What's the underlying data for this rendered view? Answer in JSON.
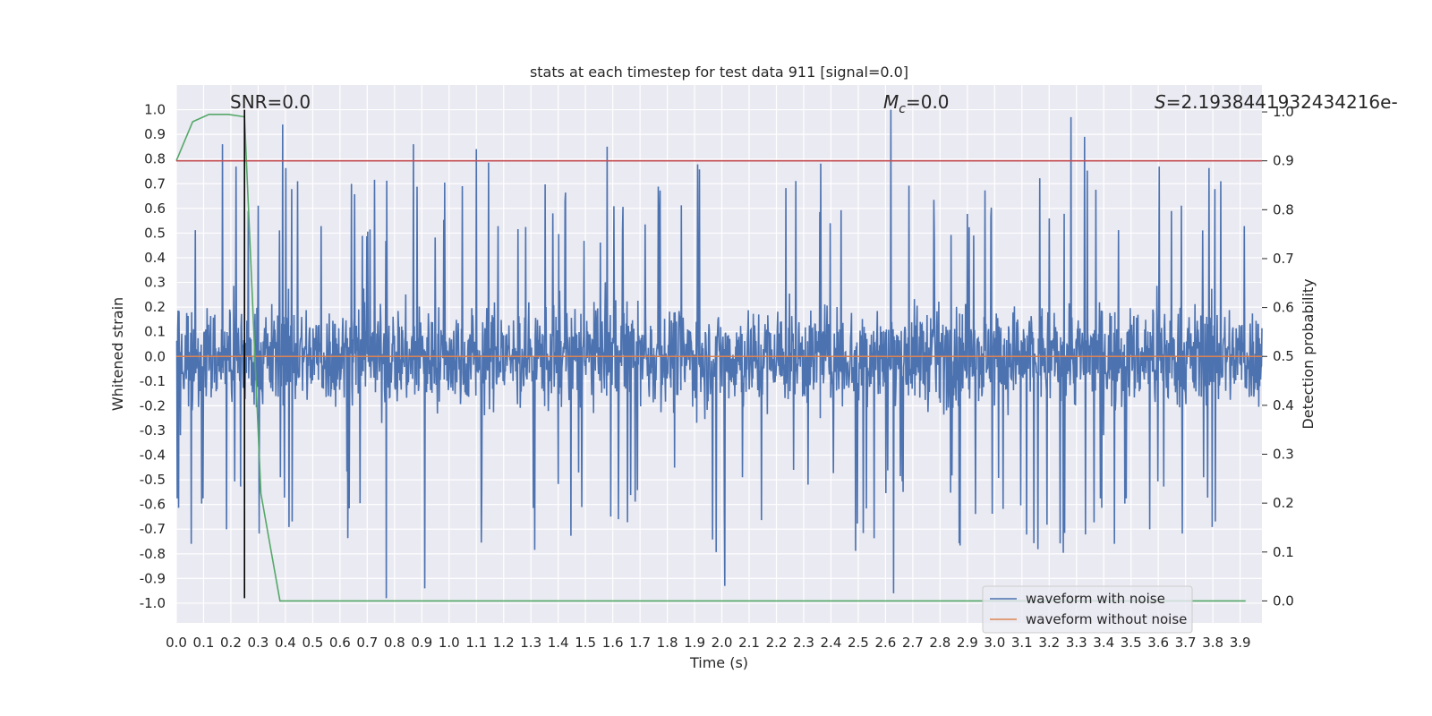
{
  "chart_data": {
    "type": "line",
    "title": "stats at each timestep for test data 911 [signal=0.0]",
    "xlabel": "Time (s)",
    "ylabel": "Whitened strain",
    "y2label": "Detection probability",
    "xlim": [
      0.0,
      3.98
    ],
    "ylim": [
      -1.08,
      1.1
    ],
    "y2lim": [
      -0.045,
      1.055
    ],
    "x_ticks": [
      "0.0",
      "0.1",
      "0.2",
      "0.3",
      "0.4",
      "0.5",
      "0.6",
      "0.7",
      "0.8",
      "0.9",
      "1.0",
      "1.1",
      "1.2",
      "1.3",
      "1.4",
      "1.5",
      "1.6",
      "1.7",
      "1.8",
      "1.9",
      "2.0",
      "2.1",
      "2.2",
      "2.3",
      "2.4",
      "2.5",
      "2.6",
      "2.7",
      "2.8",
      "2.9",
      "3.0",
      "3.1",
      "3.2",
      "3.3",
      "3.4",
      "3.5",
      "3.6",
      "3.7",
      "3.8",
      "3.9"
    ],
    "y_ticks": [
      "1.0",
      "0.9",
      "0.8",
      "0.7",
      "0.6",
      "0.5",
      "0.4",
      "0.3",
      "0.2",
      "0.1",
      "0.0",
      "-0.1",
      "-0.2",
      "-0.3",
      "-0.4",
      "-0.5",
      "-0.6",
      "-0.7",
      "-0.8",
      "-0.9",
      "-1.0"
    ],
    "y2_ticks": [
      "1.0",
      "0.9",
      "0.8",
      "0.7",
      "0.6",
      "0.5",
      "0.4",
      "0.3",
      "0.2",
      "0.1",
      "0.0"
    ],
    "grid": true,
    "annotations": {
      "snr": "SNR=0.0",
      "mc_symbol": "M",
      "mc_sub": "c",
      "mc_value": "=0.0",
      "s_symbol": "S",
      "s_value": "=2.1938441932434216e-"
    },
    "legend": {
      "position": "bottom-right",
      "entries": [
        "waveform with noise",
        "waveform without noise"
      ]
    },
    "series": [
      {
        "name": "waveform with noise",
        "axis": "left",
        "color": "#4c72b0",
        "description_x_range": [
          0.0,
          3.98
        ],
        "approx_envelope": [
          -1.0,
          1.0
        ],
        "notable_peaks": [
          {
            "x": 0.17,
            "y": 0.86
          },
          {
            "x": 0.39,
            "y": 0.94
          },
          {
            "x": 0.87,
            "y": 0.86
          },
          {
            "x": 1.1,
            "y": 0.84
          },
          {
            "x": 1.58,
            "y": 0.85
          },
          {
            "x": 2.62,
            "y": 1.0
          },
          {
            "x": 3.28,
            "y": 0.97
          },
          {
            "x": 3.33,
            "y": 0.89
          },
          {
            "x": 0.77,
            "y": -0.98
          },
          {
            "x": 0.91,
            "y": -0.94
          },
          {
            "x": 2.01,
            "y": -0.93
          },
          {
            "x": 2.63,
            "y": -0.96
          }
        ]
      },
      {
        "name": "waveform without noise",
        "axis": "left",
        "color": "#dd8452",
        "x": [
          0.0,
          3.98
        ],
        "y": [
          0.0,
          0.0
        ]
      },
      {
        "axis": "right",
        "color": "#55a868",
        "x": [
          0.0,
          0.06,
          0.12,
          0.19,
          0.25,
          0.31,
          0.38,
          0.44,
          0.5,
          1.0,
          2.0,
          3.0,
          3.92
        ],
        "y": [
          0.9,
          0.98,
          0.995,
          0.995,
          0.99,
          0.22,
          0.0,
          0.0,
          0.0,
          0.0,
          0.0,
          0.0,
          0.0
        ]
      },
      {
        "axis": "right",
        "color": "#c44e52",
        "x": [
          0.0,
          3.98
        ],
        "y": [
          0.9,
          0.9
        ]
      }
    ],
    "marker_line": {
      "x": 0.25,
      "color": "#000000",
      "y_range": [
        -0.98,
        1.0
      ]
    }
  }
}
